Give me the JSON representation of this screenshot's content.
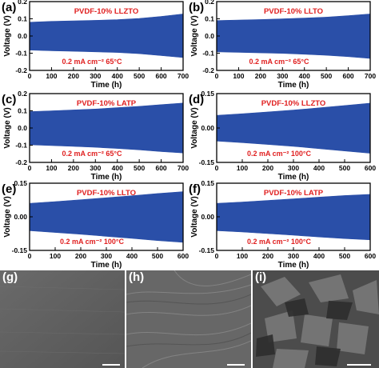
{
  "chart_data": [
    {
      "panel": "(a)",
      "type": "area",
      "title": "PVDF-10% LLZTO",
      "condition": "0.2 mA cm⁻²   65°C",
      "xlabel": "Time (h)",
      "ylabel": "Voltage (V)",
      "xlim": [
        0,
        700
      ],
      "ylim": [
        -0.2,
        0.2
      ],
      "xticks": [
        0,
        100,
        200,
        300,
        400,
        500,
        600,
        700
      ],
      "yticks": [
        -0.2,
        -0.1,
        0.0,
        0.1,
        0.2
      ],
      "series": [
        {
          "color": "#2a4fa8",
          "x": [
            0,
            100,
            200,
            300,
            400,
            500,
            600,
            700
          ],
          "upper": [
            0.08,
            0.085,
            0.088,
            0.091,
            0.095,
            0.102,
            0.114,
            0.128
          ],
          "lower": [
            -0.082,
            -0.086,
            -0.089,
            -0.092,
            -0.096,
            -0.103,
            -0.114,
            -0.125
          ]
        }
      ]
    },
    {
      "panel": "(b)",
      "type": "area",
      "title": "PVDF-10% LLTO",
      "condition": "0.2 mA cm⁻²   65°C",
      "xlabel": "Time (h)",
      "ylabel": "Voltage (V)",
      "xlim": [
        0,
        700
      ],
      "ylim": [
        -0.2,
        0.2
      ],
      "xticks": [
        0,
        100,
        200,
        300,
        400,
        500,
        600,
        700
      ],
      "yticks": [
        -0.2,
        -0.1,
        0.0,
        0.1,
        0.2
      ],
      "series": [
        {
          "color": "#2a4fa8",
          "x": [
            0,
            100,
            200,
            300,
            400,
            500,
            600,
            700
          ],
          "upper": [
            0.09,
            0.093,
            0.096,
            0.1,
            0.104,
            0.11,
            0.118,
            0.128
          ],
          "lower": [
            -0.092,
            -0.095,
            -0.098,
            -0.101,
            -0.106,
            -0.112,
            -0.12,
            -0.13
          ]
        }
      ]
    },
    {
      "panel": "(c)",
      "type": "area",
      "title": "PVDF-10% LATP",
      "condition": "0.2 mA cm⁻²   65°C",
      "xlabel": "Time (h)",
      "ylabel": "Voltage (V)",
      "xlim": [
        0,
        700
      ],
      "ylim": [
        -0.2,
        0.2
      ],
      "xticks": [
        0,
        100,
        200,
        300,
        400,
        500,
        600,
        700
      ],
      "yticks": [
        -0.2,
        -0.1,
        0.0,
        0.1,
        0.2
      ],
      "series": [
        {
          "color": "#2a4fa8",
          "x": [
            0,
            100,
            200,
            300,
            400,
            500,
            600,
            700
          ],
          "upper": [
            0.095,
            0.1,
            0.105,
            0.11,
            0.118,
            0.126,
            0.136,
            0.145
          ],
          "lower": [
            -0.097,
            -0.102,
            -0.107,
            -0.112,
            -0.119,
            -0.127,
            -0.137,
            -0.145
          ]
        }
      ]
    },
    {
      "panel": "(d)",
      "type": "area",
      "title": "PVDF-10% LLZTO",
      "condition": "0.2 mA cm⁻²    100°C",
      "xlabel": "Time (h)",
      "ylabel": "Voltage (V)",
      "xlim": [
        0,
        600
      ],
      "ylim": [
        -0.15,
        0.15
      ],
      "xticks": [
        0,
        100,
        200,
        300,
        400,
        500,
        600
      ],
      "yticks": [
        -0.15,
        0.0,
        0.15
      ],
      "series": [
        {
          "color": "#2a4fa8",
          "x": [
            0,
            100,
            200,
            300,
            400,
            500,
            600
          ],
          "upper": [
            0.055,
            0.062,
            0.07,
            0.078,
            0.088,
            0.098,
            0.108
          ],
          "lower": [
            -0.057,
            -0.064,
            -0.072,
            -0.08,
            -0.09,
            -0.1,
            -0.11
          ]
        }
      ]
    },
    {
      "panel": "(e)",
      "type": "area",
      "title": "PVDF-10% LLTO",
      "condition": "0.2 mA cm⁻²    100°C",
      "xlabel": "Time (h)",
      "ylabel": "Voltage (V)",
      "xlim": [
        0,
        600
      ],
      "ylim": [
        -0.15,
        0.15
      ],
      "xticks": [
        0,
        100,
        200,
        300,
        400,
        500,
        600
      ],
      "yticks": [
        -0.15,
        0.0,
        0.15
      ],
      "series": [
        {
          "color": "#2a4fa8",
          "x": [
            0,
            100,
            200,
            300,
            400,
            500,
            600
          ],
          "upper": [
            0.06,
            0.068,
            0.076,
            0.085,
            0.094,
            0.104,
            0.112
          ],
          "lower": [
            -0.062,
            -0.07,
            -0.078,
            -0.087,
            -0.096,
            -0.106,
            -0.114
          ]
        }
      ]
    },
    {
      "panel": "(f)",
      "type": "area",
      "title": "PVDF-10% LATP",
      "condition": "0.2 mA cm⁻²    100°C",
      "xlabel": "Time (h)",
      "ylabel": "Voltage (V)",
      "xlim": [
        0,
        600
      ],
      "ylim": [
        -0.15,
        0.15
      ],
      "xticks": [
        0,
        100,
        200,
        300,
        400,
        500,
        600
      ],
      "yticks": [
        -0.15,
        0.0,
        0.15
      ],
      "series": [
        {
          "color": "#2a4fa8",
          "x": [
            0,
            100,
            200,
            300,
            400,
            500,
            600
          ],
          "upper": [
            0.06,
            0.066,
            0.073,
            0.08,
            0.088,
            0.095,
            0.1
          ],
          "lower": [
            -0.062,
            -0.068,
            -0.075,
            -0.082,
            -0.09,
            -0.097,
            -0.103
          ]
        }
      ]
    }
  ],
  "micrographs": [
    {
      "label": "(g)",
      "texture": "smooth"
    },
    {
      "label": "(h)",
      "texture": "ridged"
    },
    {
      "label": "(i)",
      "texture": "rough"
    }
  ],
  "colors": {
    "trace": "#2a4fa8",
    "annotation": "#e02020",
    "axis": "#000000"
  }
}
